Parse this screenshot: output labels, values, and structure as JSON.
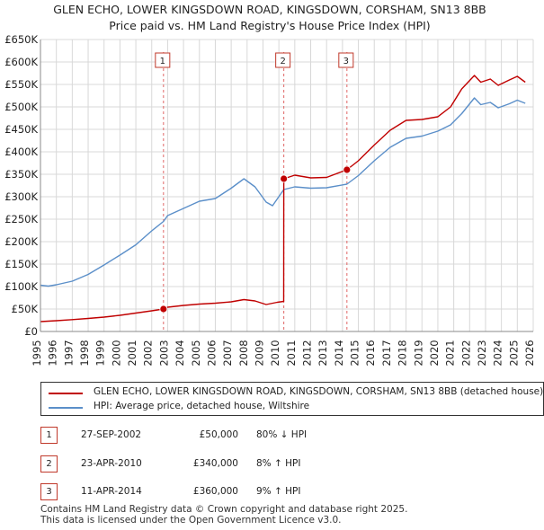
{
  "title_line1": "GLEN ECHO, LOWER KINGSDOWN ROAD, KINGSDOWN, CORSHAM, SN13 8BB",
  "title_line2": "Price paid vs. HM Land Registry's House Price Index (HPI)",
  "colors": {
    "property": "#c00000",
    "hpi": "#5b8fc9",
    "marker_border": "#c0392b"
  },
  "chart_data": {
    "type": "line",
    "xlim": [
      1995,
      2026
    ],
    "ylim": [
      0,
      650000
    ],
    "y_ticks": [
      0,
      50000,
      100000,
      150000,
      200000,
      250000,
      300000,
      350000,
      400000,
      450000,
      500000,
      550000,
      600000,
      650000
    ],
    "y_tick_labels": [
      "£0",
      "£50K",
      "£100K",
      "£150K",
      "£200K",
      "£250K",
      "£300K",
      "£350K",
      "£400K",
      "£450K",
      "£500K",
      "£550K",
      "£600K",
      "£650K"
    ],
    "x_ticks": [
      1995,
      1996,
      1997,
      1998,
      1999,
      2000,
      2001,
      2002,
      2003,
      2004,
      2005,
      2006,
      2007,
      2008,
      2009,
      2010,
      2011,
      2012,
      2013,
      2014,
      2015,
      2016,
      2017,
      2018,
      2019,
      2020,
      2021,
      2022,
      2023,
      2024,
      2025,
      2026
    ],
    "x_tick_labels": [
      "1995",
      "1996",
      "1997",
      "1998",
      "1999",
      "2000",
      "2001",
      "2002",
      "2003",
      "2004",
      "2005",
      "2006",
      "2007",
      "2008",
      "2009",
      "2010",
      "2011",
      "2012",
      "2013",
      "2014",
      "2015",
      "2016",
      "2017",
      "2018",
      "2019",
      "2020",
      "2021",
      "2022",
      "2023",
      "2024",
      "2025",
      "2026"
    ],
    "grid": true,
    "series": [
      {
        "name": "GLEN ECHO, LOWER KINGSDOWN ROAD, KINGSDOWN, CORSHAM, SN13 8BB (detached house)",
        "x": [
          1995,
          1996,
          1997,
          1998,
          1999,
          2000,
          2001,
          2002,
          2002.74,
          2003,
          2004,
          2005,
          2006,
          2007,
          2007.8,
          2008.5,
          2009.2,
          2009.9,
          2010.3,
          2010.31,
          2011,
          2012,
          2013,
          2014.28,
          2015,
          2016,
          2017,
          2018,
          2019,
          2020,
          2020.8,
          2021.5,
          2022.3,
          2022.7,
          2023.3,
          2023.8,
          2024.5,
          2025.0,
          2025.5
        ],
        "y": [
          22000,
          24000,
          26500,
          29000,
          32000,
          36000,
          41000,
          46000,
          50000,
          54000,
          58000,
          61000,
          63000,
          66000,
          71000,
          68000,
          60000,
          65000,
          67000,
          340000,
          348000,
          342000,
          343000,
          360000,
          380000,
          415000,
          448000,
          470000,
          472000,
          478000,
          500000,
          540000,
          570000,
          555000,
          562000,
          548000,
          560000,
          568000,
          555000
        ]
      },
      {
        "name": "HPI: Average price, detached house, Wiltshire",
        "x": [
          1995,
          1995.5,
          1996,
          1997,
          1998,
          1999,
          2000,
          2001,
          2002,
          2002.74,
          2003,
          2004,
          2005,
          2006,
          2007,
          2007.8,
          2008.5,
          2009.2,
          2009.6,
          2010.31,
          2011,
          2012,
          2013,
          2014.28,
          2015,
          2016,
          2017,
          2018,
          2019,
          2020,
          2020.8,
          2021.5,
          2022.3,
          2022.7,
          2023.3,
          2023.8,
          2024.5,
          2025.0,
          2025.5
        ],
        "y": [
          103000,
          101000,
          104000,
          112000,
          127000,
          148000,
          170000,
          193000,
          224000,
          245000,
          258000,
          274000,
          290000,
          296000,
          319000,
          340000,
          322000,
          288000,
          280000,
          316000,
          322000,
          319000,
          320000,
          328000,
          347000,
          380000,
          410000,
          430000,
          435000,
          446000,
          460000,
          485000,
          520000,
          505000,
          510000,
          498000,
          507000,
          515000,
          508000
        ]
      }
    ],
    "sales": [
      {
        "label": "1",
        "date": "27-SEP-2002",
        "x": 2002.74,
        "price": 50000,
        "price_text": "£50,000",
        "hpi_text": "80% ↓ HPI"
      },
      {
        "label": "2",
        "date": "23-APR-2010",
        "x": 2010.31,
        "price": 340000,
        "price_text": "£340,000",
        "hpi_text": "8% ↑ HPI"
      },
      {
        "label": "3",
        "date": "11-APR-2014",
        "x": 2014.28,
        "price": 360000,
        "price_text": "£360,000",
        "hpi_text": "9% ↑ HPI"
      }
    ]
  },
  "legend": {
    "property_label": "GLEN ECHO, LOWER KINGSDOWN ROAD, KINGSDOWN, CORSHAM, SN13 8BB (detached house)",
    "hpi_label": "HPI: Average price, detached house, Wiltshire"
  },
  "footer_line1": "Contains HM Land Registry data © Crown copyright and database right 2025.",
  "footer_line2": "This data is licensed under the Open Government Licence v3.0."
}
